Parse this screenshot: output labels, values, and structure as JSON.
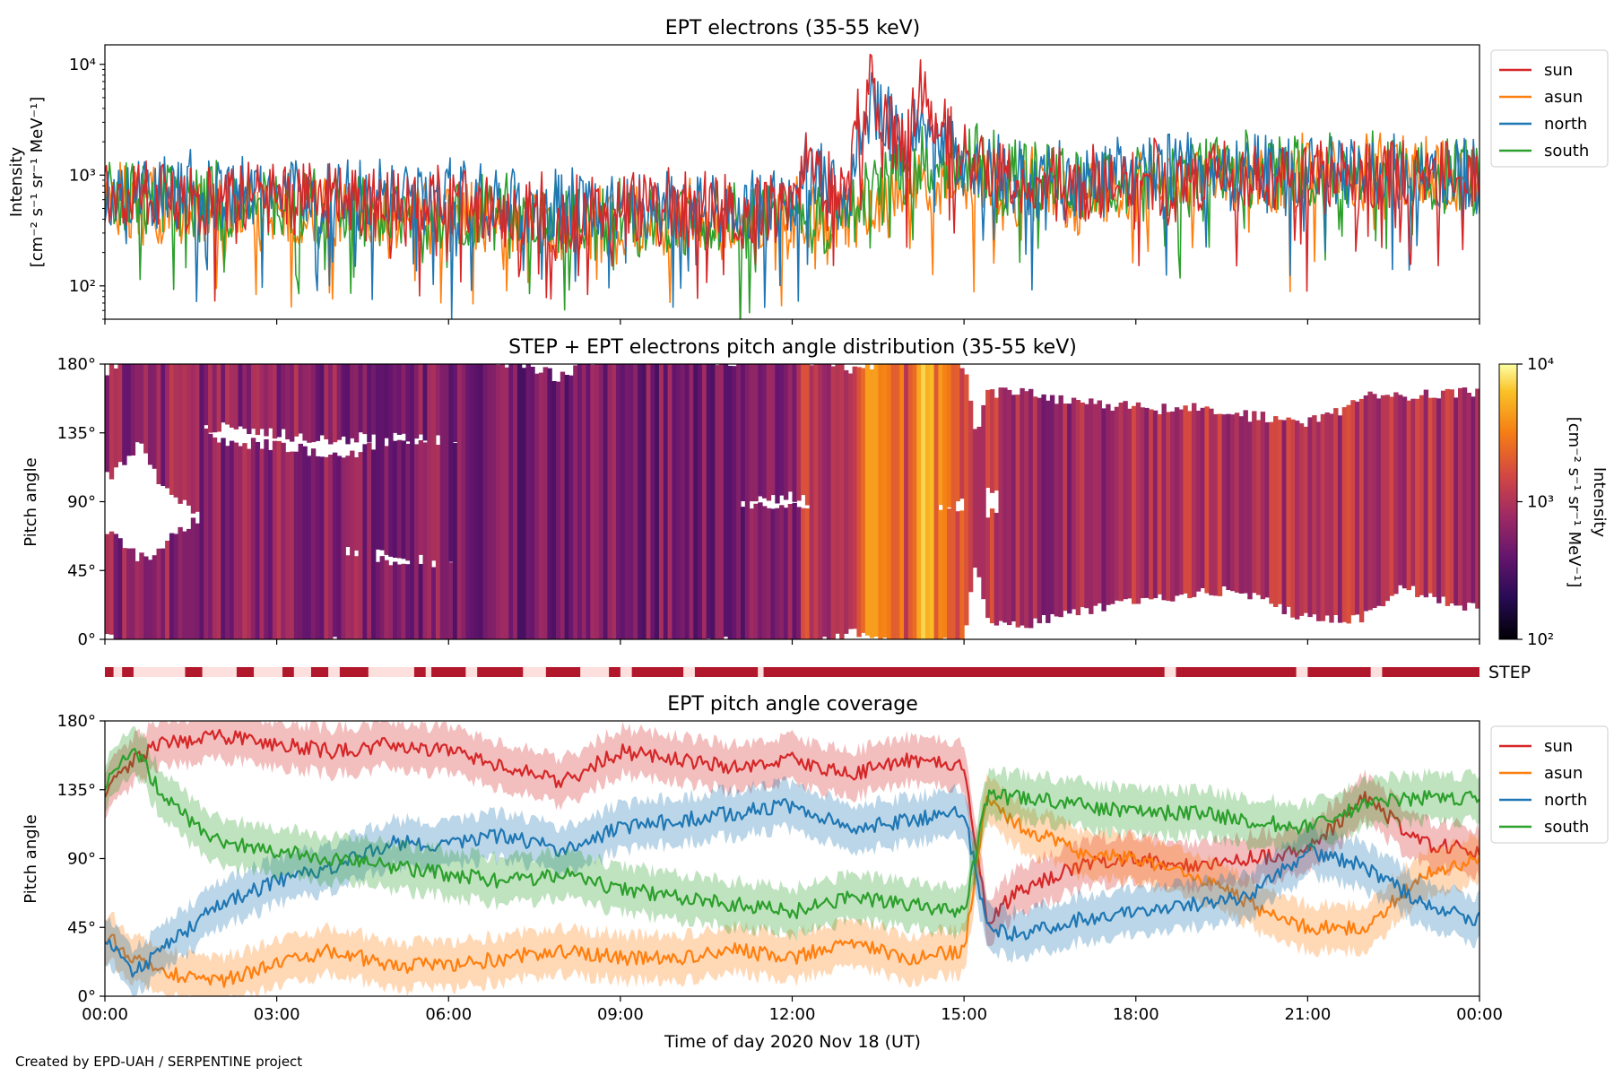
{
  "figure": {
    "credit": "Created by EPD-UAH / SERPENTINE project",
    "xlabel": "Time of day 2020 Nov 18 (UT)",
    "x_ticks": [
      "00:00",
      "03:00",
      "06:00",
      "09:00",
      "12:00",
      "15:00",
      "18:00",
      "21:00",
      "00:00"
    ]
  },
  "colors": {
    "sun": "#d62728",
    "asun": "#ff7f0e",
    "north": "#1f77b4",
    "south": "#2ca02c",
    "step_bar": "#b2182b"
  },
  "chart_data": [
    {
      "id": "intensity",
      "type": "line",
      "title": "EPT electrons (35-55 keV)",
      "ylabel_line1": "Intensity",
      "ylabel_line2": "[cm⁻² s⁻¹ sr⁻¹ MeV⁻¹]",
      "yscale": "log",
      "ylim": [
        50,
        15000
      ],
      "y_ticks": [
        {
          "value": 100,
          "label": "10²"
        },
        {
          "value": 1000,
          "label": "10³"
        },
        {
          "value": 10000,
          "label": "10⁴"
        }
      ],
      "xlim_hours": [
        0,
        24
      ],
      "legend": "outside-top-right",
      "series": [
        {
          "name": "sun",
          "x": [
            0,
            1,
            2,
            3,
            4,
            5,
            6,
            7,
            8,
            9,
            10,
            11,
            12,
            12.3,
            12.5,
            13,
            13.4,
            13.7,
            14,
            14.3,
            14.6,
            15,
            15.5,
            16,
            17,
            18,
            19,
            20,
            21,
            22,
            23,
            24
          ],
          "y": [
            650,
            700,
            600,
            650,
            600,
            550,
            550,
            500,
            450,
            500,
            500,
            500,
            500,
            1500,
            1000,
            800,
            6500,
            2500,
            1700,
            5800,
            2500,
            1500,
            1100,
            800,
            800,
            900,
            1000,
            1000,
            1000,
            1100,
            1000,
            900
          ]
        },
        {
          "name": "asun",
          "x": [
            0,
            2,
            4,
            6,
            8,
            9,
            10,
            11,
            12,
            13,
            14,
            15,
            16,
            17,
            18,
            19,
            20,
            21,
            22,
            23,
            24
          ],
          "y": [
            550,
            500,
            450,
            400,
            380,
            380,
            400,
            400,
            420,
            450,
            700,
            800,
            750,
            700,
            750,
            900,
            950,
            1000,
            1050,
            950,
            850
          ]
        },
        {
          "name": "north",
          "x": [
            0,
            2,
            4,
            6,
            8,
            9,
            10,
            11,
            12,
            12.3,
            12.5,
            13,
            13.4,
            13.7,
            14,
            14.3,
            14.6,
            15,
            16,
            17,
            18,
            19,
            20,
            21,
            22,
            23,
            24
          ],
          "y": [
            700,
            700,
            650,
            600,
            550,
            500,
            500,
            500,
            500,
            1300,
            900,
            700,
            4500,
            2500,
            1600,
            3500,
            1800,
            1300,
            900,
            850,
            1000,
            1050,
            1100,
            1050,
            1100,
            1050,
            1000
          ]
        },
        {
          "name": "south",
          "x": [
            0,
            2,
            4,
            6,
            8,
            9,
            10,
            11,
            12,
            13,
            13.5,
            14,
            15,
            16,
            17,
            18,
            19,
            20,
            21,
            22,
            23,
            24
          ],
          "y": [
            600,
            550,
            500,
            450,
            400,
            380,
            380,
            400,
            400,
            450,
            700,
            1200,
            1300,
            1000,
            850,
            850,
            1000,
            1050,
            1050,
            1100,
            1050,
            1000
          ]
        }
      ]
    },
    {
      "id": "pad",
      "type": "heatmap",
      "title": "STEP + EPT electrons pitch angle distribution (35-55 keV)",
      "ylabel": "Pitch angle",
      "ylim": [
        0,
        180
      ],
      "y_ticks": [
        "0°",
        "45°",
        "90°",
        "135°",
        "180°"
      ],
      "colorbar": {
        "label": "Intensity",
        "units": "[cm⁻² s⁻¹ sr⁻¹ MeV⁻¹]",
        "scale": "log",
        "range": [
          100,
          10000
        ],
        "ticks": [
          "10²",
          "10³",
          "10⁴"
        ],
        "colormap": "inferno"
      }
    },
    {
      "id": "step",
      "type": "bar",
      "label": "STEP",
      "gaps_hours": [
        [
          0.15,
          0.3
        ],
        [
          0.5,
          1.4
        ],
        [
          1.7,
          2.3
        ],
        [
          2.6,
          3.1
        ],
        [
          3.3,
          3.6
        ],
        [
          3.9,
          4.1
        ],
        [
          4.6,
          5.4
        ],
        [
          5.6,
          5.7
        ],
        [
          6.3,
          6.5
        ],
        [
          7.3,
          7.7
        ],
        [
          8.3,
          8.8
        ],
        [
          9.0,
          9.2
        ],
        [
          10.1,
          10.3
        ],
        [
          11.4,
          11.5
        ],
        [
          18.5,
          18.7
        ],
        [
          20.8,
          21.0
        ],
        [
          22.1,
          22.3
        ]
      ]
    },
    {
      "id": "coverage",
      "type": "line",
      "title": "EPT pitch angle coverage",
      "ylabel": "Pitch angle",
      "ylim": [
        0,
        180
      ],
      "y_ticks": [
        "0°",
        "45°",
        "90°",
        "135°",
        "180°"
      ],
      "xlim_hours": [
        0,
        24
      ],
      "legend": "outside-top-right",
      "series": [
        {
          "name": "sun",
          "x": [
            0,
            0.5,
            1,
            2,
            3,
            4,
            5,
            6,
            7,
            8,
            9,
            10,
            11,
            12,
            13,
            14,
            15,
            15.4,
            16,
            17,
            18,
            19,
            20,
            21,
            22,
            23,
            24
          ],
          "y": [
            135,
            155,
            165,
            170,
            165,
            160,
            165,
            160,
            150,
            140,
            160,
            155,
            150,
            155,
            145,
            155,
            150,
            50,
            70,
            85,
            90,
            85,
            90,
            95,
            130,
            100,
            95
          ]
        },
        {
          "name": "asun",
          "x": [
            0,
            0.5,
            1,
            2,
            3,
            4,
            5,
            6,
            7,
            8,
            9,
            10,
            11,
            12,
            13,
            14,
            15,
            15.4,
            16,
            17,
            18,
            19,
            20,
            21,
            22,
            23,
            24
          ],
          "y": [
            40,
            25,
            15,
            10,
            20,
            30,
            20,
            20,
            25,
            30,
            25,
            25,
            30,
            25,
            35,
            25,
            30,
            130,
            110,
            95,
            90,
            80,
            60,
            45,
            45,
            80,
            90
          ]
        },
        {
          "name": "north",
          "x": [
            0,
            0.5,
            1,
            2,
            3,
            4,
            5,
            6,
            7,
            8,
            9,
            10,
            11,
            12,
            13,
            14,
            15,
            15.4,
            16,
            17,
            18,
            19,
            20,
            21,
            22,
            23,
            24
          ],
          "y": [
            40,
            15,
            30,
            60,
            75,
            85,
            100,
            100,
            105,
            95,
            110,
            115,
            120,
            125,
            110,
            115,
            120,
            45,
            40,
            50,
            55,
            60,
            65,
            95,
            85,
            60,
            50
          ]
        },
        {
          "name": "south",
          "x": [
            0,
            0.5,
            1,
            2,
            3,
            4,
            5,
            6,
            7,
            8,
            9,
            10,
            11,
            12,
            13,
            14,
            15,
            15.4,
            16,
            17,
            18,
            19,
            20,
            21,
            22,
            23,
            24
          ],
          "y": [
            140,
            165,
            130,
            100,
            95,
            90,
            85,
            80,
            75,
            80,
            70,
            65,
            60,
            55,
            65,
            60,
            55,
            130,
            130,
            125,
            120,
            120,
            115,
            110,
            125,
            130,
            130
          ]
        }
      ]
    }
  ]
}
